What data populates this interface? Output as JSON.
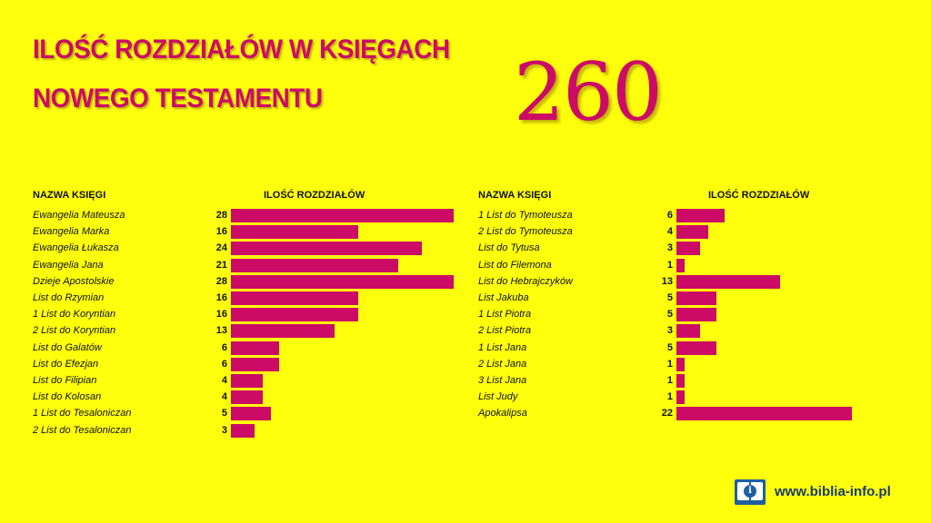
{
  "title": {
    "line1": "ILOŚĆ ROZDZIAŁÓW W KSIĘGACH",
    "line2": "NOWEGO TESTAMENTU",
    "total": "260"
  },
  "colors": {
    "background": "#ffff0d",
    "accent": "#cc0b66",
    "logo": "#1f5fa0"
  },
  "footer": {
    "logo_icon": "book-info-icon",
    "website": "www.biblia-info.pl"
  },
  "chart_data": [
    {
      "type": "bar",
      "orientation": "horizontal",
      "category_header": "NAZWA KSIĘGI",
      "value_header": "ILOŚĆ ROZDZIAŁÓW",
      "categories": [
        "Ewangelia Mateusza",
        "Ewangelia Marka",
        "Ewangelia Łukasza",
        "Ewangelia Jana",
        "Dzieje Apostolskie",
        "List do Rzymian",
        "1 List do Koryntian",
        "2 List do Koryntian",
        "List do Galatów",
        "List do Efezjan",
        "List do Filipian",
        "List do Kolosan",
        "1 List do Tesaloniczan",
        "2 List do Tesaloniczan"
      ],
      "values": [
        28,
        16,
        24,
        21,
        28,
        16,
        16,
        13,
        6,
        6,
        4,
        4,
        5,
        3
      ],
      "grid": false
    },
    {
      "type": "bar",
      "orientation": "horizontal",
      "category_header": "NAZWA KSIĘGI",
      "value_header": "ILOŚĆ ROZDZIAŁÓW",
      "categories": [
        "1 List do Tymoteusza",
        "2 List do Tymoteusza",
        "List do Tytusa",
        "List do Filemona",
        "List do Hebrajczyków",
        "List Jakuba",
        "1 List Piotra",
        "2 List Piotra",
        "1 List Jana",
        "2 List Jana",
        "3 List Jana",
        "List Judy",
        "Apokalipsa"
      ],
      "values": [
        6,
        4,
        3,
        1,
        13,
        5,
        5,
        3,
        5,
        1,
        1,
        1,
        22
      ],
      "grid": false
    }
  ]
}
